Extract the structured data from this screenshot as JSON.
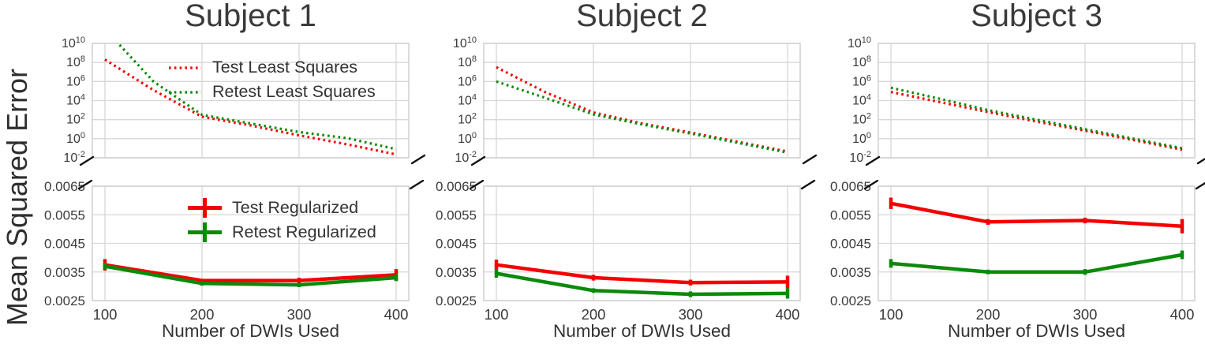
{
  "figure": {
    "ylabel": "Mean Squared Error",
    "xlabel": "Number of DWIs Used",
    "colors": {
      "test": "#f40000",
      "retest": "#0a8a0a",
      "grid": "#d7d7d7",
      "text": "#333333"
    },
    "legend_top": [
      "Test Least Squares",
      "Retest Least Squares"
    ],
    "legend_bottom": [
      "Test Regularized",
      "Retest Regularized"
    ]
  },
  "chart_data": [
    {
      "subject": "Subject 1",
      "top_panel": {
        "type": "line",
        "yscale": "log",
        "x": [
          100,
          150,
          200,
          250,
          300,
          350,
          400
        ],
        "series": [
          {
            "name": "Test Least Squares",
            "color_key": "test",
            "style": "dotted",
            "log10_values": [
              8.3,
              5.1,
              2.3,
              1.4,
              0.35,
              -0.6,
              -1.65
            ]
          },
          {
            "name": "Retest Least Squares",
            "color_key": "retest",
            "style": "dotted",
            "log10_values": [
              11.5,
              6.0,
              2.5,
              1.6,
              0.7,
              0.05,
              -1.1
            ]
          }
        ],
        "ylim_log10": [
          -2,
          10
        ],
        "ytick_exponents": [
          10,
          8,
          6,
          4,
          2,
          0,
          -2
        ],
        "xgrid": [
          100,
          200,
          300,
          400
        ],
        "broken_axis_marks": "bottom",
        "legend": true
      },
      "bottom_panel": {
        "type": "line",
        "yscale": "linear",
        "x": [
          100,
          200,
          300,
          400
        ],
        "series": [
          {
            "name": "Test Regularized",
            "color_key": "test",
            "values": [
              0.00375,
              0.0032,
              0.0032,
              0.0034
            ],
            "errors": [
              0.0002,
              6e-05,
              0.0001,
              0.0002
            ]
          },
          {
            "name": "Retest Regularized",
            "color_key": "retest",
            "values": [
              0.0037,
              0.0031,
              0.00305,
              0.0033
            ],
            "errors": [
              0.00012,
              8e-05,
              8e-05,
              0.00012
            ]
          }
        ],
        "ylim": [
          0.0025,
          0.0065
        ],
        "yticks": [
          0.0065,
          0.0055,
          0.0045,
          0.0035,
          0.0025
        ],
        "ytick_labels": [
          "0.0065",
          "0.0055",
          "0.0045",
          "0.0035",
          "0.0025"
        ],
        "xticks": [
          100,
          200,
          300,
          400
        ],
        "xtick_labels": [
          "100",
          "200",
          "300",
          "400"
        ],
        "broken_axis_marks": "top",
        "legend": true
      }
    },
    {
      "subject": "Subject 2",
      "top_panel": {
        "type": "line",
        "yscale": "log",
        "x": [
          100,
          150,
          200,
          250,
          300,
          350,
          400
        ],
        "series": [
          {
            "name": "Test Least Squares",
            "color_key": "test",
            "style": "dotted",
            "log10_values": [
              7.5,
              4.9,
              2.75,
              1.6,
              0.65,
              -0.35,
              -1.35
            ]
          },
          {
            "name": "Retest Least Squares",
            "color_key": "retest",
            "style": "dotted",
            "log10_values": [
              6.0,
              4.3,
              2.55,
              1.5,
              0.55,
              -0.45,
              -1.45
            ]
          }
        ],
        "ylim_log10": [
          -2,
          10
        ],
        "ytick_exponents": [
          10,
          8,
          6,
          4,
          2,
          0,
          -2
        ],
        "xgrid": [
          100,
          200,
          300,
          400
        ],
        "broken_axis_marks": "bottom",
        "legend": false
      },
      "bottom_panel": {
        "type": "line",
        "yscale": "linear",
        "x": [
          100,
          200,
          300,
          400
        ],
        "series": [
          {
            "name": "Test Regularized",
            "color_key": "test",
            "values": [
              0.00375,
              0.0033,
              0.00313,
              0.00315
            ],
            "errors": [
              0.00018,
              0.0001,
              0.0001,
              0.00022
            ]
          },
          {
            "name": "Retest Regularized",
            "color_key": "retest",
            "values": [
              0.00345,
              0.00285,
              0.00272,
              0.00275
            ],
            "errors": [
              0.00015,
              8e-05,
              0.0001,
              0.00018
            ]
          }
        ],
        "ylim": [
          0.0025,
          0.0065
        ],
        "yticks": [
          0.0065,
          0.0055,
          0.0045,
          0.0035,
          0.0025
        ],
        "ytick_labels": [
          "0.0065",
          "0.0055",
          "0.0045",
          "0.0035",
          "0.0025"
        ],
        "xticks": [
          100,
          200,
          300,
          400
        ],
        "xtick_labels": [
          "100",
          "200",
          "300",
          "400"
        ],
        "broken_axis_marks": "top",
        "legend": false
      }
    },
    {
      "subject": "Subject 3",
      "top_panel": {
        "type": "line",
        "yscale": "log",
        "x": [
          100,
          150,
          200,
          250,
          300,
          350,
          400
        ],
        "series": [
          {
            "name": "Test Least Squares",
            "color_key": "test",
            "style": "dotted",
            "log10_values": [
              4.9,
              3.85,
              2.8,
              1.8,
              0.85,
              -0.15,
              -1.15
            ]
          },
          {
            "name": "Retest Least Squares",
            "color_key": "retest",
            "style": "dotted",
            "log10_values": [
              5.35,
              4.2,
              3.0,
              2.0,
              1.0,
              0.0,
              -1.0
            ]
          }
        ],
        "ylim_log10": [
          -2,
          10
        ],
        "ytick_exponents": [
          10,
          8,
          6,
          4,
          2,
          0,
          -2
        ],
        "xgrid": [
          100,
          200,
          300,
          400
        ],
        "broken_axis_marks": "bottom",
        "legend": false
      },
      "bottom_panel": {
        "type": "line",
        "yscale": "linear",
        "x": [
          100,
          200,
          300,
          400
        ],
        "series": [
          {
            "name": "Test Regularized",
            "color_key": "test",
            "values": [
              0.0059,
              0.00525,
              0.0053,
              0.0051
            ],
            "errors": [
              0.0002,
              0.0001,
              0.0001,
              0.00025
            ]
          },
          {
            "name": "Retest Regularized",
            "color_key": "retest",
            "values": [
              0.0038,
              0.0035,
              0.0035,
              0.0041
            ],
            "errors": [
              0.00015,
              8e-05,
              0.0001,
              0.00015
            ]
          }
        ],
        "ylim": [
          0.0025,
          0.0065
        ],
        "yticks": [
          0.0065,
          0.0055,
          0.0045,
          0.0035,
          0.0025
        ],
        "ytick_labels": [
          "0.0065",
          "0.0055",
          "0.0045",
          "0.0035",
          "0.0025"
        ],
        "xticks": [
          100,
          200,
          300,
          400
        ],
        "xtick_labels": [
          "100",
          "200",
          "300",
          "400"
        ],
        "broken_axis_marks": "top",
        "legend": false
      }
    }
  ]
}
